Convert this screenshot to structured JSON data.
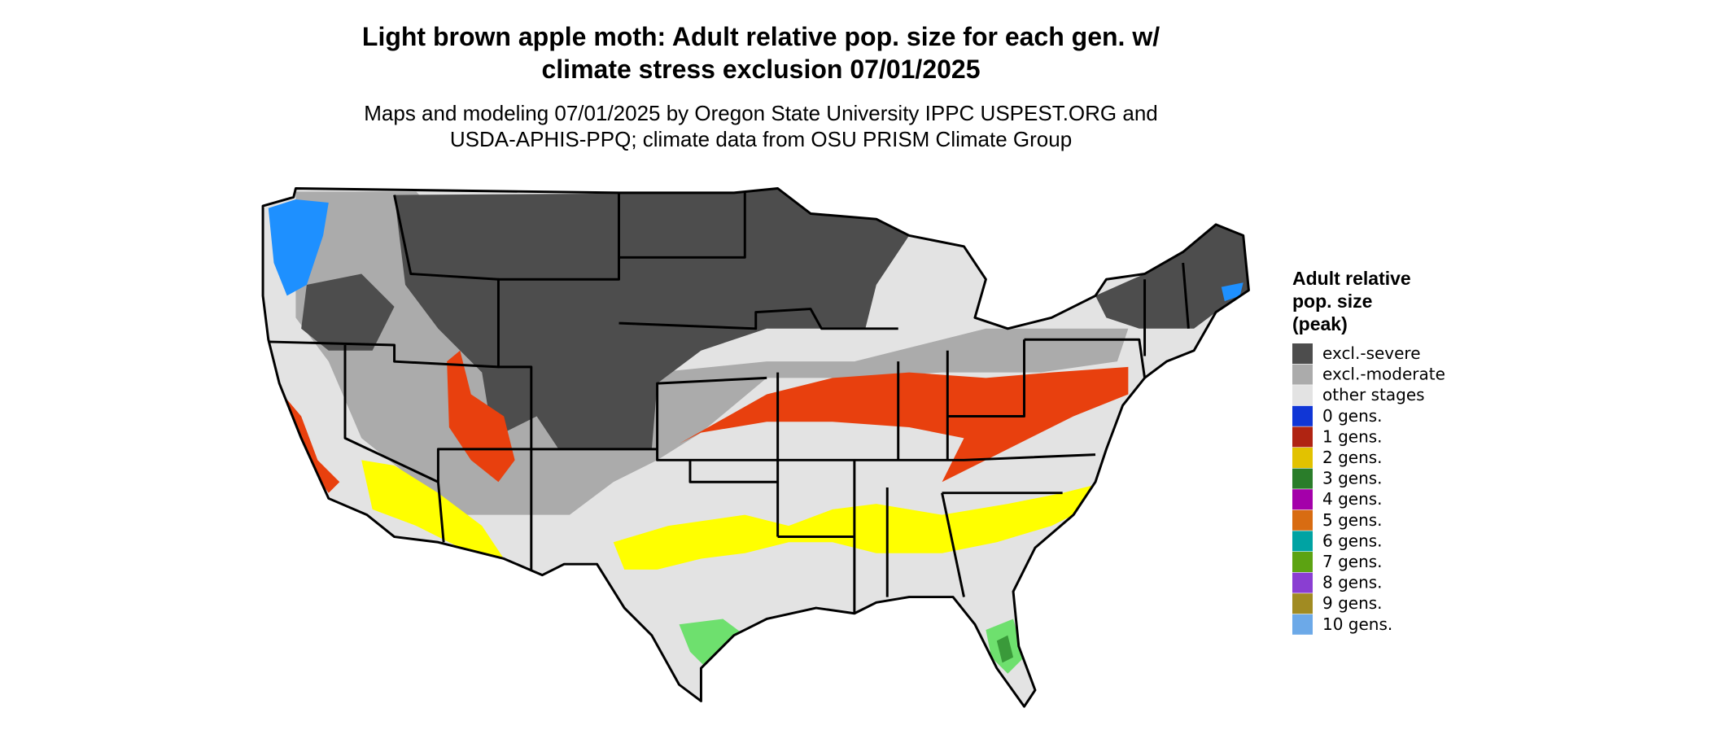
{
  "map": {
    "title": [
      "Light brown apple moth: Adult relative pop. size for each gen. w/",
      "climate stress exclusion 07/01/2025"
    ],
    "subtitle": [
      "Maps and modeling 07/01/2025 by Oregon State University IPPC USPEST.ORG and",
      "USDA-APHIS-PPQ; climate data from OSU PRISM Climate Group"
    ],
    "legend": {
      "title": [
        "Adult relative",
        "pop. size",
        "(peak)"
      ],
      "entries": [
        {
          "label": "excl.-severe",
          "color": "#4d4d4d"
        },
        {
          "label": "excl.-moderate",
          "color": "#ababab"
        },
        {
          "label": "other stages",
          "color": "#e3e3e3"
        },
        {
          "label": "0 gens.",
          "color": "#1036d6"
        },
        {
          "label": "1 gens.",
          "color": "#b02412"
        },
        {
          "label": "2 gens.",
          "color": "#e2c200"
        },
        {
          "label": "3 gens.",
          "color": "#2a7d2a"
        },
        {
          "label": "4 gens.",
          "color": "#a400aa"
        },
        {
          "label": "5 gens.",
          "color": "#d86c12"
        },
        {
          "label": "6 gens.",
          "color": "#00a3a3"
        },
        {
          "label": "7 gens.",
          "color": "#5ca312"
        },
        {
          "label": "8 gens.",
          "color": "#8a3ed2"
        },
        {
          "label": "9 gens.",
          "color": "#a18b22"
        },
        {
          "label": "10 gens.",
          "color": "#6ca9e8"
        }
      ]
    }
  }
}
